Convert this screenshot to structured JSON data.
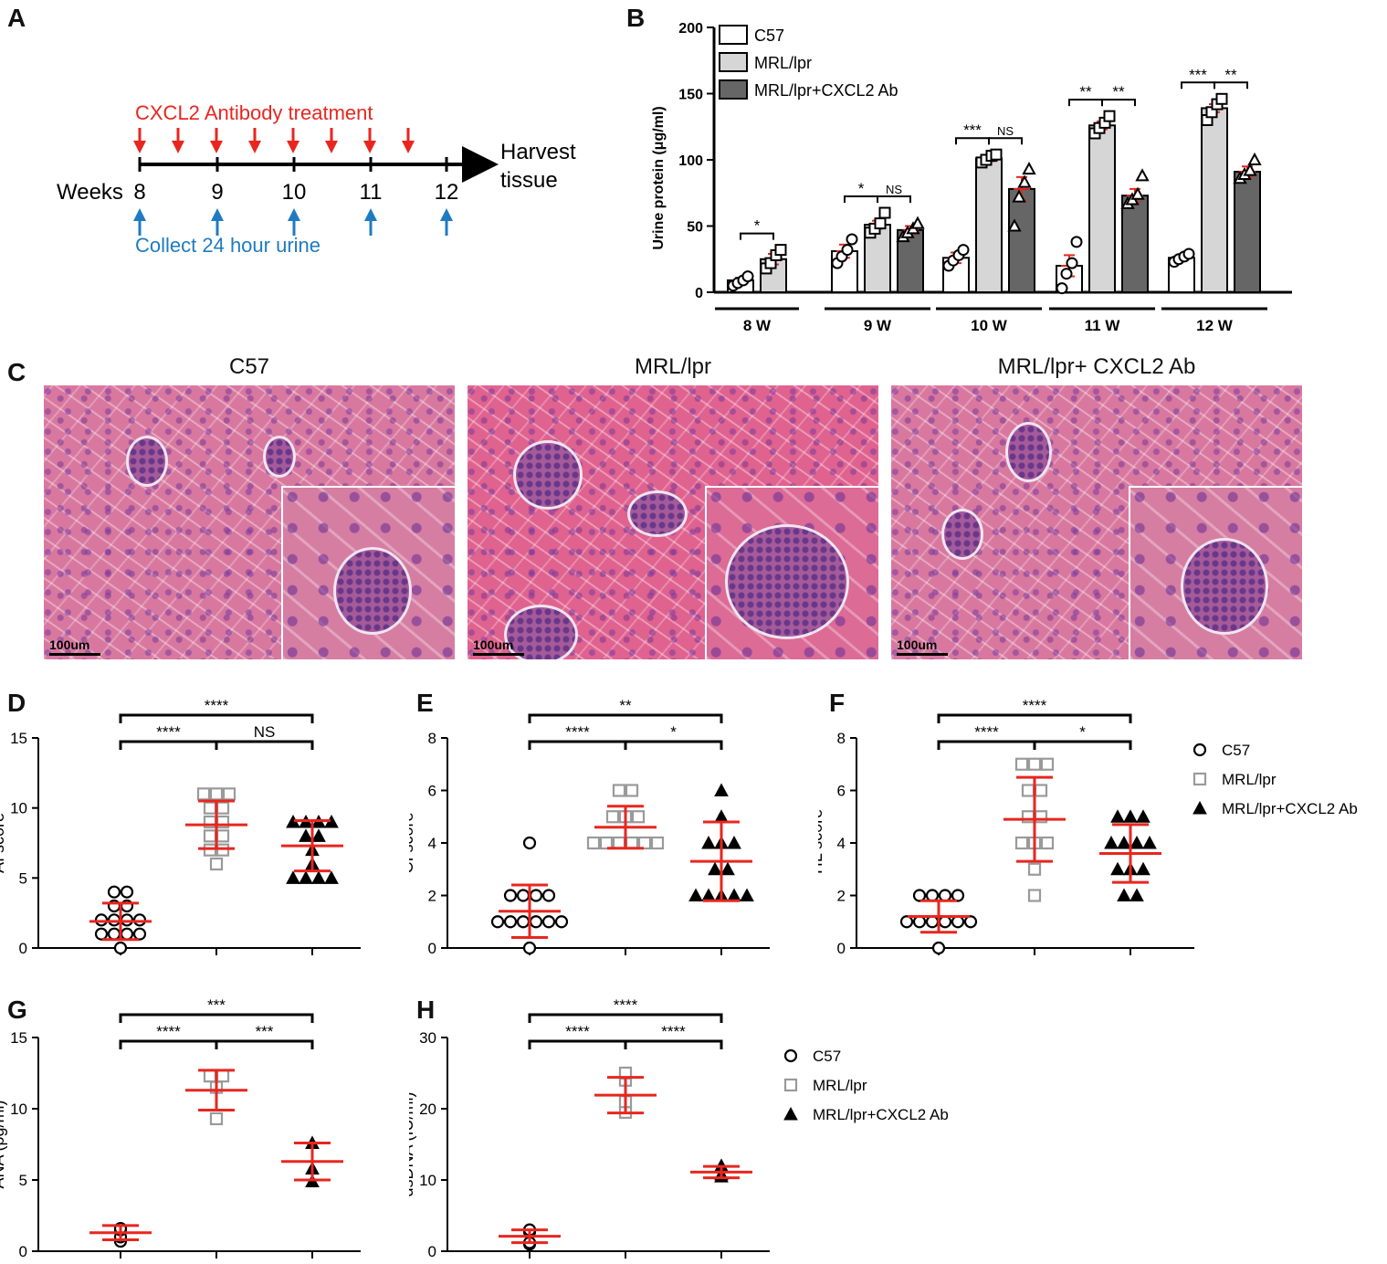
{
  "panels": {
    "A": {
      "letter": "A",
      "treatment_label": "CXCL2 Antibody treatment",
      "collect_label": "Collect 24 hour urine",
      "weeks_label": "Weeks",
      "weeks": [
        "8",
        "9",
        "10",
        "11",
        "12"
      ],
      "end_label_1": "Harvest",
      "end_label_2": "tissue",
      "treatment_color": "#e8261f",
      "collect_color": "#1f7bc1"
    },
    "B": {
      "letter": "B"
    },
    "C": {
      "letter": "C",
      "images": [
        {
          "title": "C57",
          "scale": "100um"
        },
        {
          "title": "MRL/lpr",
          "scale": "100um"
        },
        {
          "title": "MRL/lpr+ CXCL2 Ab",
          "scale": "100um"
        }
      ]
    },
    "D": {
      "letter": "D"
    },
    "E": {
      "letter": "E"
    },
    "F": {
      "letter": "F"
    },
    "G": {
      "letter": "G"
    },
    "H": {
      "letter": "H"
    }
  },
  "legends": {
    "scatter": [
      "C57",
      "MRL/lpr",
      "MRL/lpr+CXCL2 Ab"
    ]
  },
  "colors": {
    "mean_bar": "#e8261f",
    "c57_fill": "#ffffff",
    "mrl_fill": "#d6d6d6",
    "ab_fill": "#666666",
    "mrl_marker": "#9a9a9a"
  },
  "chart_data": [
    {
      "id": "B",
      "type": "bar",
      "ylabel": "Urine protein (μg/ml)",
      "ylim": [
        0,
        200
      ],
      "yticks": [
        0,
        50,
        100,
        150,
        200
      ],
      "categories": [
        "8 W",
        "9 W",
        "10 W",
        "11 W",
        "12 W"
      ],
      "series": [
        {
          "name": "C57",
          "values": [
            9,
            31,
            26,
            20,
            26
          ],
          "sem": [
            2,
            5,
            4,
            8,
            2
          ],
          "points": [
            [
              5,
              7,
              9,
              12
            ],
            [
              22,
              27,
              32,
              40
            ],
            [
              20,
              24,
              28,
              32
            ],
            [
              3,
              14,
              22,
              38
            ],
            [
              23,
              25,
              27,
              29
            ]
          ]
        },
        {
          "name": "MRL/lpr",
          "values": [
            25,
            51,
            101,
            126,
            139
          ],
          "sem": [
            4,
            3,
            2,
            3,
            3
          ],
          "points": [
            [
              18,
              22,
              28,
              32
            ],
            [
              45,
              48,
              52,
              60
            ],
            [
              98,
              100,
              103,
              104
            ],
            [
              120,
              124,
              128,
              133
            ],
            [
              130,
              136,
              142,
              146
            ]
          ]
        },
        {
          "name": "MRL/lpr+CXCL2 Ab",
          "values": [
            null,
            47,
            78,
            73,
            91
          ],
          "sem": [
            null,
            3,
            9,
            5,
            4
          ],
          "points": [
            null,
            [
              42,
              45,
              48,
              52
            ],
            [
              50,
              72,
              83,
              93
            ],
            [
              67,
              70,
              74,
              88
            ],
            [
              86,
              89,
              92,
              100
            ]
          ]
        }
      ],
      "annotations": [
        {
          "text": "*",
          "category": 0,
          "pair": [
            0,
            1
          ]
        },
        {
          "text": "*",
          "category": 1,
          "pair": [
            0,
            1
          ]
        },
        {
          "text": "NS",
          "category": 1,
          "pair": [
            1,
            2
          ]
        },
        {
          "text": "***",
          "category": 2,
          "pair": [
            0,
            1
          ]
        },
        {
          "text": "NS",
          "category": 2,
          "pair": [
            1,
            2
          ]
        },
        {
          "text": "**",
          "category": 3,
          "pair": [
            0,
            1
          ]
        },
        {
          "text": "**",
          "category": 3,
          "pair": [
            1,
            2
          ]
        },
        {
          "text": "***",
          "category": 4,
          "pair": [
            0,
            1
          ]
        },
        {
          "text": "**",
          "category": 4,
          "pair": [
            1,
            2
          ]
        }
      ]
    },
    {
      "id": "D",
      "type": "scatter",
      "ylabel": "AI score",
      "ylim": [
        0,
        15
      ],
      "yticks": [
        0,
        5,
        10,
        15
      ],
      "groups": [
        {
          "name": "C57",
          "mean": 1.9,
          "sd": 1.3,
          "points": [
            0,
            1,
            1,
            1,
            1,
            2,
            2,
            2,
            2,
            3,
            3,
            4,
            4
          ]
        },
        {
          "name": "MRL/lpr",
          "mean": 8.8,
          "sd": 1.7,
          "points": [
            6,
            7,
            7,
            8,
            8,
            9,
            9,
            10,
            10,
            11,
            11,
            11
          ]
        },
        {
          "name": "MRL/lpr+CXCL2 Ab",
          "mean": 7.3,
          "sd": 1.8,
          "points": [
            5,
            5,
            5,
            5,
            6,
            7,
            8,
            8,
            9,
            9,
            9,
            9
          ]
        }
      ],
      "annotations": [
        {
          "text": "****",
          "from": 0,
          "to": 1,
          "level": 1
        },
        {
          "text": "NS",
          "from": 1,
          "to": 2,
          "level": 1
        },
        {
          "text": "****",
          "from": 0,
          "to": 2,
          "level": 2
        }
      ]
    },
    {
      "id": "E",
      "type": "scatter",
      "ylabel": "CI score",
      "ylim": [
        0,
        8
      ],
      "yticks": [
        0,
        2,
        4,
        6,
        8
      ],
      "groups": [
        {
          "name": "C57",
          "mean": 1.4,
          "sd": 1.0,
          "points": [
            0,
            1,
            1,
            1,
            1,
            1,
            1,
            2,
            2,
            2,
            2,
            4
          ]
        },
        {
          "name": "MRL/lpr",
          "mean": 4.6,
          "sd": 0.8,
          "points": [
            4,
            4,
            4,
            4,
            4,
            4,
            5,
            5,
            5,
            6,
            6
          ]
        },
        {
          "name": "MRL/lpr+CXCL2 Ab",
          "mean": 3.3,
          "sd": 1.5,
          "points": [
            2,
            2,
            2,
            2,
            2,
            3,
            3,
            4,
            4,
            4,
            5,
            6
          ]
        }
      ],
      "annotations": [
        {
          "text": "****",
          "from": 0,
          "to": 1,
          "level": 1
        },
        {
          "text": "*",
          "from": 1,
          "to": 2,
          "level": 1
        },
        {
          "text": "**",
          "from": 0,
          "to": 2,
          "level": 2
        }
      ]
    },
    {
      "id": "F",
      "type": "scatter",
      "ylabel": "TIL score",
      "ylim": [
        0,
        8
      ],
      "yticks": [
        0,
        2,
        4,
        6,
        8
      ],
      "groups": [
        {
          "name": "C57",
          "mean": 1.2,
          "sd": 0.6,
          "points": [
            0,
            1,
            1,
            1,
            1,
            1,
            1,
            2,
            2,
            2,
            2
          ]
        },
        {
          "name": "MRL/lpr",
          "mean": 4.9,
          "sd": 1.6,
          "points": [
            2,
            3,
            4,
            4,
            4,
            5,
            5,
            6,
            6,
            7,
            7,
            7
          ]
        },
        {
          "name": "MRL/lpr+CXCL2 Ab",
          "mean": 3.6,
          "sd": 1.1,
          "points": [
            2,
            2,
            3,
            3,
            3,
            4,
            4,
            4,
            4,
            5,
            5,
            5
          ]
        }
      ],
      "annotations": [
        {
          "text": "****",
          "from": 0,
          "to": 1,
          "level": 1
        },
        {
          "text": "*",
          "from": 1,
          "to": 2,
          "level": 1
        },
        {
          "text": "****",
          "from": 0,
          "to": 2,
          "level": 2
        }
      ]
    },
    {
      "id": "G",
      "type": "scatter",
      "ylabel": "ANA (pg/ml)",
      "ylim": [
        0,
        15
      ],
      "yticks": [
        0,
        5,
        10,
        15
      ],
      "groups": [
        {
          "name": "C57",
          "mean": 1.3,
          "sd": 0.5,
          "points": [
            0.7,
            1.0,
            1.5,
            1.6
          ]
        },
        {
          "name": "MRL/lpr",
          "mean": 11.3,
          "sd": 1.4,
          "points": [
            9.3,
            11.5,
            12.3,
            12.3
          ]
        },
        {
          "name": "MRL/lpr+CXCL2 Ab",
          "mean": 6.3,
          "sd": 1.3,
          "points": [
            4.9,
            5.8,
            7.6
          ]
        }
      ],
      "annotations": [
        {
          "text": "****",
          "from": 0,
          "to": 1,
          "level": 1
        },
        {
          "text": "***",
          "from": 1,
          "to": 2,
          "level": 1
        },
        {
          "text": "***",
          "from": 0,
          "to": 2,
          "level": 2
        }
      ]
    },
    {
      "id": "H",
      "type": "scatter",
      "ylabel": "dsDNA (IU/ml)",
      "ylim": [
        0,
        30
      ],
      "yticks": [
        0,
        10,
        20,
        30
      ],
      "groups": [
        {
          "name": "C57",
          "mean": 2.1,
          "sd": 0.9,
          "points": [
            1.0,
            1.2,
            2.7,
            3.0
          ]
        },
        {
          "name": "MRL/lpr",
          "mean": 21.9,
          "sd": 2.5,
          "points": [
            19.5,
            21.0,
            24.0,
            25.0
          ]
        },
        {
          "name": "MRL/lpr+CXCL2 Ab",
          "mean": 11.1,
          "sd": 0.8,
          "points": [
            10.5,
            10.8,
            12.0
          ]
        }
      ],
      "annotations": [
        {
          "text": "****",
          "from": 0,
          "to": 1,
          "level": 1
        },
        {
          "text": "****",
          "from": 1,
          "to": 2,
          "level": 1
        },
        {
          "text": "****",
          "from": 0,
          "to": 2,
          "level": 2
        }
      ]
    }
  ]
}
